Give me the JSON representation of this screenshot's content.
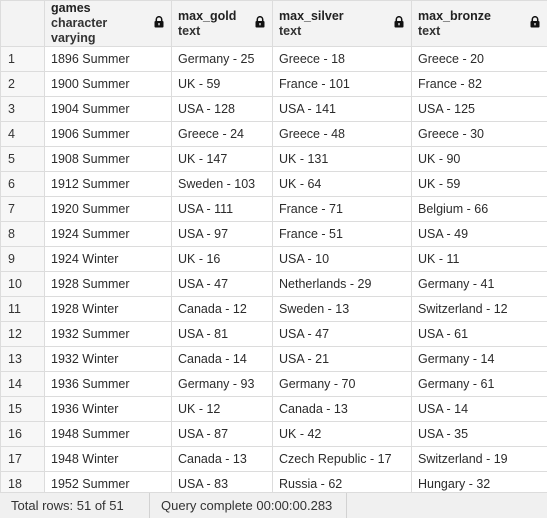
{
  "columns": [
    {
      "name": "",
      "type": ""
    },
    {
      "name": "games",
      "type": "character varying"
    },
    {
      "name": "max_gold",
      "type": "text"
    },
    {
      "name": "max_silver",
      "type": "text"
    },
    {
      "name": "max_bronze",
      "type": "text"
    }
  ],
  "rows": [
    [
      "1",
      "1896 Summer",
      "Germany - 25",
      "Greece - 18",
      "Greece - 20"
    ],
    [
      "2",
      "1900 Summer",
      "UK - 59",
      "France - 101",
      "France - 82"
    ],
    [
      "3",
      "1904 Summer",
      "USA - 128",
      "USA - 141",
      "USA - 125"
    ],
    [
      "4",
      "1906 Summer",
      "Greece - 24",
      "Greece - 48",
      "Greece - 30"
    ],
    [
      "5",
      "1908 Summer",
      "UK - 147",
      "UK - 131",
      "UK - 90"
    ],
    [
      "6",
      "1912 Summer",
      "Sweden - 103",
      "UK - 64",
      "UK - 59"
    ],
    [
      "7",
      "1920 Summer",
      "USA - 111",
      "France - 71",
      "Belgium - 66"
    ],
    [
      "8",
      "1924 Summer",
      "USA - 97",
      "France - 51",
      "USA - 49"
    ],
    [
      "9",
      "1924 Winter",
      "UK - 16",
      "USA - 10",
      "UK - 11"
    ],
    [
      "10",
      "1928 Summer",
      "USA - 47",
      "Netherlands - 29",
      "Germany - 41"
    ],
    [
      "11",
      "1928 Winter",
      "Canada - 12",
      "Sweden - 13",
      "Switzerland - 12"
    ],
    [
      "12",
      "1932 Summer",
      "USA - 81",
      "USA - 47",
      "USA - 61"
    ],
    [
      "13",
      "1932 Winter",
      "Canada - 14",
      "USA - 21",
      "Germany - 14"
    ],
    [
      "14",
      "1936 Summer",
      "Germany - 93",
      "Germany - 70",
      "Germany - 61"
    ],
    [
      "15",
      "1936 Winter",
      "UK - 12",
      "Canada - 13",
      "USA - 14"
    ],
    [
      "16",
      "1948 Summer",
      "USA - 87",
      "UK - 42",
      "USA - 35"
    ],
    [
      "17",
      "1948 Winter",
      "Canada - 13",
      "Czech Republic - 17",
      "Switzerland - 19"
    ],
    [
      "18",
      "1952 Summer",
      "USA - 83",
      "Russia - 62",
      "Hungary - 32"
    ]
  ],
  "status": {
    "total_rows": "Total rows: 51 of 51",
    "query": "Query complete 00:00:00.283"
  },
  "icons": {
    "column_lock": "lock-icon"
  }
}
